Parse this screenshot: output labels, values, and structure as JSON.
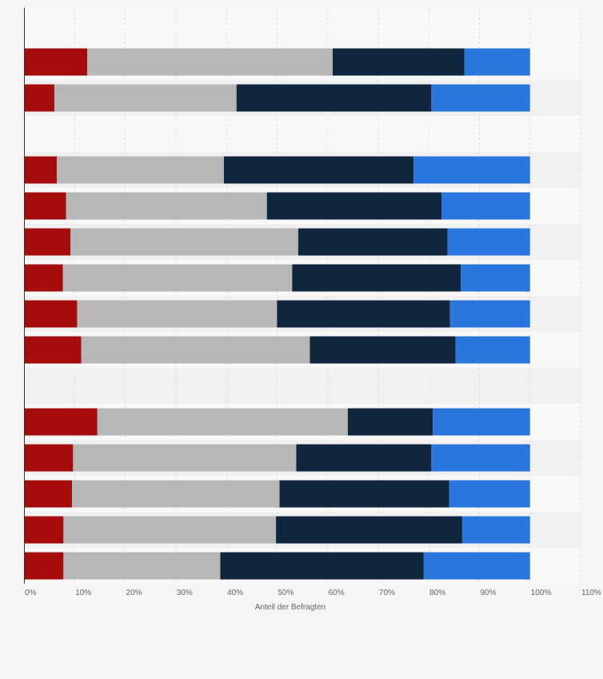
{
  "chart_data": {
    "type": "bar",
    "orientation": "horizontal",
    "stacked": true,
    "xlabel": "Anteil der Befragten",
    "ylabel": "",
    "xlim": [
      0,
      110
    ],
    "x_ticks": [
      "0%",
      "10%",
      "20%",
      "30%",
      "40%",
      "50%",
      "60%",
      "70%",
      "80%",
      "90%",
      "100%",
      "110%"
    ],
    "grid": true,
    "legend": "none",
    "colors": [
      "#a50d0d",
      "#b7b7b7",
      "#10263c",
      "#2977dc"
    ],
    "rows": [
      {
        "values": [
          12.5,
          48.5,
          26.0,
          13.0
        ]
      },
      {
        "values": [
          6.0,
          36.0,
          38.5,
          19.5
        ]
      },
      null,
      {
        "values": [
          6.5,
          33.0,
          37.5,
          23.0
        ]
      },
      {
        "values": [
          8.3,
          39.7,
          34.5,
          17.5
        ]
      },
      {
        "values": [
          9.2,
          45.0,
          29.5,
          16.3
        ]
      },
      {
        "values": [
          7.7,
          45.3,
          33.3,
          13.7
        ]
      },
      {
        "values": [
          10.5,
          39.5,
          34.2,
          15.8
        ]
      },
      {
        "values": [
          11.3,
          45.2,
          28.8,
          14.7
        ]
      },
      null,
      {
        "values": [
          14.5,
          49.5,
          16.8,
          19.2
        ]
      },
      {
        "values": [
          9.7,
          44.1,
          26.7,
          19.5
        ]
      },
      {
        "values": [
          9.5,
          41.0,
          33.5,
          16.0
        ]
      },
      {
        "values": [
          7.8,
          42.0,
          36.8,
          13.4
        ]
      },
      {
        "values": [
          7.8,
          31.0,
          40.2,
          21.0
        ]
      }
    ]
  }
}
